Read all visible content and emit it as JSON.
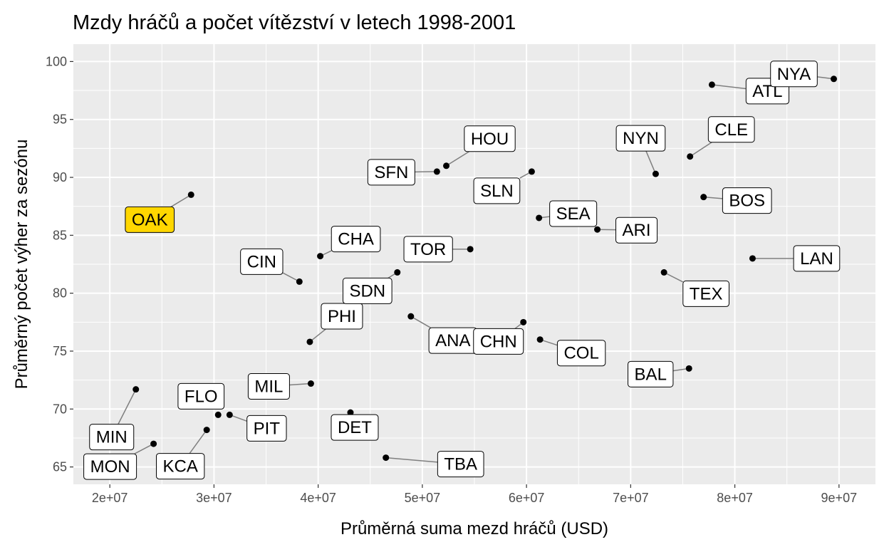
{
  "chart_data": {
    "type": "scatter",
    "title": "Mzdy hráčů a počet vítězství v letech 1998-2001",
    "xlabel": "Průměrná suma mezd hráčů (USD)",
    "ylabel": "Průměrný počet výher za sezónu",
    "xlim": [
      16500000,
      93500000
    ],
    "ylim": [
      63.5,
      101.5
    ],
    "xticks": [
      20000000,
      30000000,
      40000000,
      50000000,
      60000000,
      70000000,
      80000000,
      90000000
    ],
    "xtick_labels": [
      "2e+07",
      "3e+07",
      "4e+07",
      "5e+07",
      "6e+07",
      "7e+07",
      "8e+07",
      "9e+07"
    ],
    "yticks": [
      65,
      70,
      75,
      80,
      85,
      90,
      95,
      100
    ],
    "ytick_labels": [
      "65",
      "70",
      "75",
      "80",
      "85",
      "90",
      "95",
      "100"
    ],
    "grid": true,
    "highlight_team": "OAK",
    "highlight_color": "#FFD700",
    "point_color": "#000000",
    "panel_color": "#EBEBEB",
    "points": [
      {
        "team": "OAK",
        "x": 27800000,
        "y": 88.5
      },
      {
        "team": "MIN",
        "x": 22500000,
        "y": 71.7
      },
      {
        "team": "MON",
        "x": 24200000,
        "y": 67.0
      },
      {
        "team": "KCA",
        "x": 29300000,
        "y": 68.2
      },
      {
        "team": "FLO",
        "x": 30400000,
        "y": 69.5
      },
      {
        "team": "PIT",
        "x": 31500000,
        "y": 69.5
      },
      {
        "team": "MIL",
        "x": 39300000,
        "y": 72.2
      },
      {
        "team": "PHI",
        "x": 39200000,
        "y": 75.8
      },
      {
        "team": "CIN",
        "x": 38200000,
        "y": 81.0
      },
      {
        "team": "CHA",
        "x": 40200000,
        "y": 83.2
      },
      {
        "team": "DET",
        "x": 43100000,
        "y": 69.7
      },
      {
        "team": "TBA",
        "x": 46500000,
        "y": 65.8
      },
      {
        "team": "SDN",
        "x": 47600000,
        "y": 81.8
      },
      {
        "team": "ANA",
        "x": 48900000,
        "y": 78.0
      },
      {
        "team": "SFN",
        "x": 51400000,
        "y": 90.5
      },
      {
        "team": "HOU",
        "x": 52300000,
        "y": 91.0
      },
      {
        "team": "TOR",
        "x": 54600000,
        "y": 83.8
      },
      {
        "team": "CHN",
        "x": 59700000,
        "y": 77.5
      },
      {
        "team": "COL",
        "x": 61300000,
        "y": 76.0
      },
      {
        "team": "SLN",
        "x": 60500000,
        "y": 90.5
      },
      {
        "team": "SEA",
        "x": 61200000,
        "y": 86.5
      },
      {
        "team": "ARI",
        "x": 66800000,
        "y": 85.5
      },
      {
        "team": "NYN",
        "x": 72400000,
        "y": 90.3
      },
      {
        "team": "TEX",
        "x": 73200000,
        "y": 81.8
      },
      {
        "team": "BAL",
        "x": 75600000,
        "y": 73.5
      },
      {
        "team": "CLE",
        "x": 75700000,
        "y": 91.8
      },
      {
        "team": "BOS",
        "x": 77000000,
        "y": 88.3
      },
      {
        "team": "ATL",
        "x": 77800000,
        "y": 98.0
      },
      {
        "team": "LAN",
        "x": 81700000,
        "y": 83.0
      },
      {
        "team": "NYA",
        "x": 89500000,
        "y": 98.5
      }
    ]
  }
}
